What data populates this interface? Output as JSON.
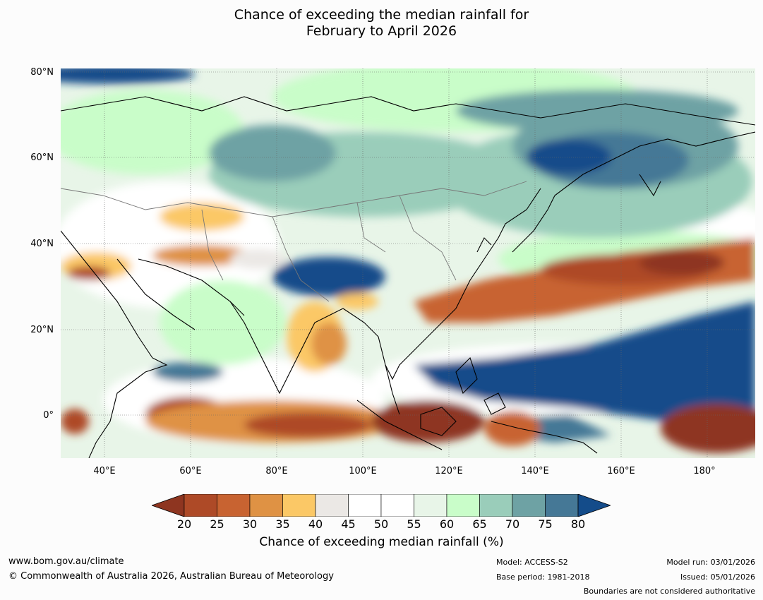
{
  "title": {
    "line1": "Chance of exceeding the median rainfall for",
    "line2": "February to April 2026"
  },
  "axes": {
    "lat_labels": [
      "80°N",
      "60°N",
      "40°N",
      "20°N",
      "0°"
    ],
    "lon_labels": [
      "40°E",
      "60°E",
      "80°E",
      "100°E",
      "120°E",
      "140°E",
      "160°E",
      "180°"
    ]
  },
  "colorbar": {
    "ticks": [
      "20",
      "25",
      "30",
      "35",
      "40",
      "45",
      "50",
      "55",
      "60",
      "65",
      "70",
      "75",
      "80"
    ],
    "colors": [
      "#8e3520",
      "#ae4a27",
      "#c86331",
      "#df9244",
      "#fbc866",
      "#ebe8e5",
      "#ffffff",
      "#ffffff",
      "#e8f5e8",
      "#c9fdc9",
      "#9acdba",
      "#6ea2a4",
      "#457896",
      "#144c8a"
    ],
    "label": "Chance of exceeding median rainfall (%)"
  },
  "footer": {
    "website": "www.bom.gov.au/climate",
    "copyright": "© Commonwealth of Australia 2026, Australian Bureau of Meteorology",
    "model": "Model: ACCESS-S2",
    "base_period": "Base period: 1981-2018",
    "model_run": "Model run: 03/01/2026",
    "issued": "Issued: 05/01/2026",
    "disclaimer": "Boundaries are not considered authoritative"
  }
}
